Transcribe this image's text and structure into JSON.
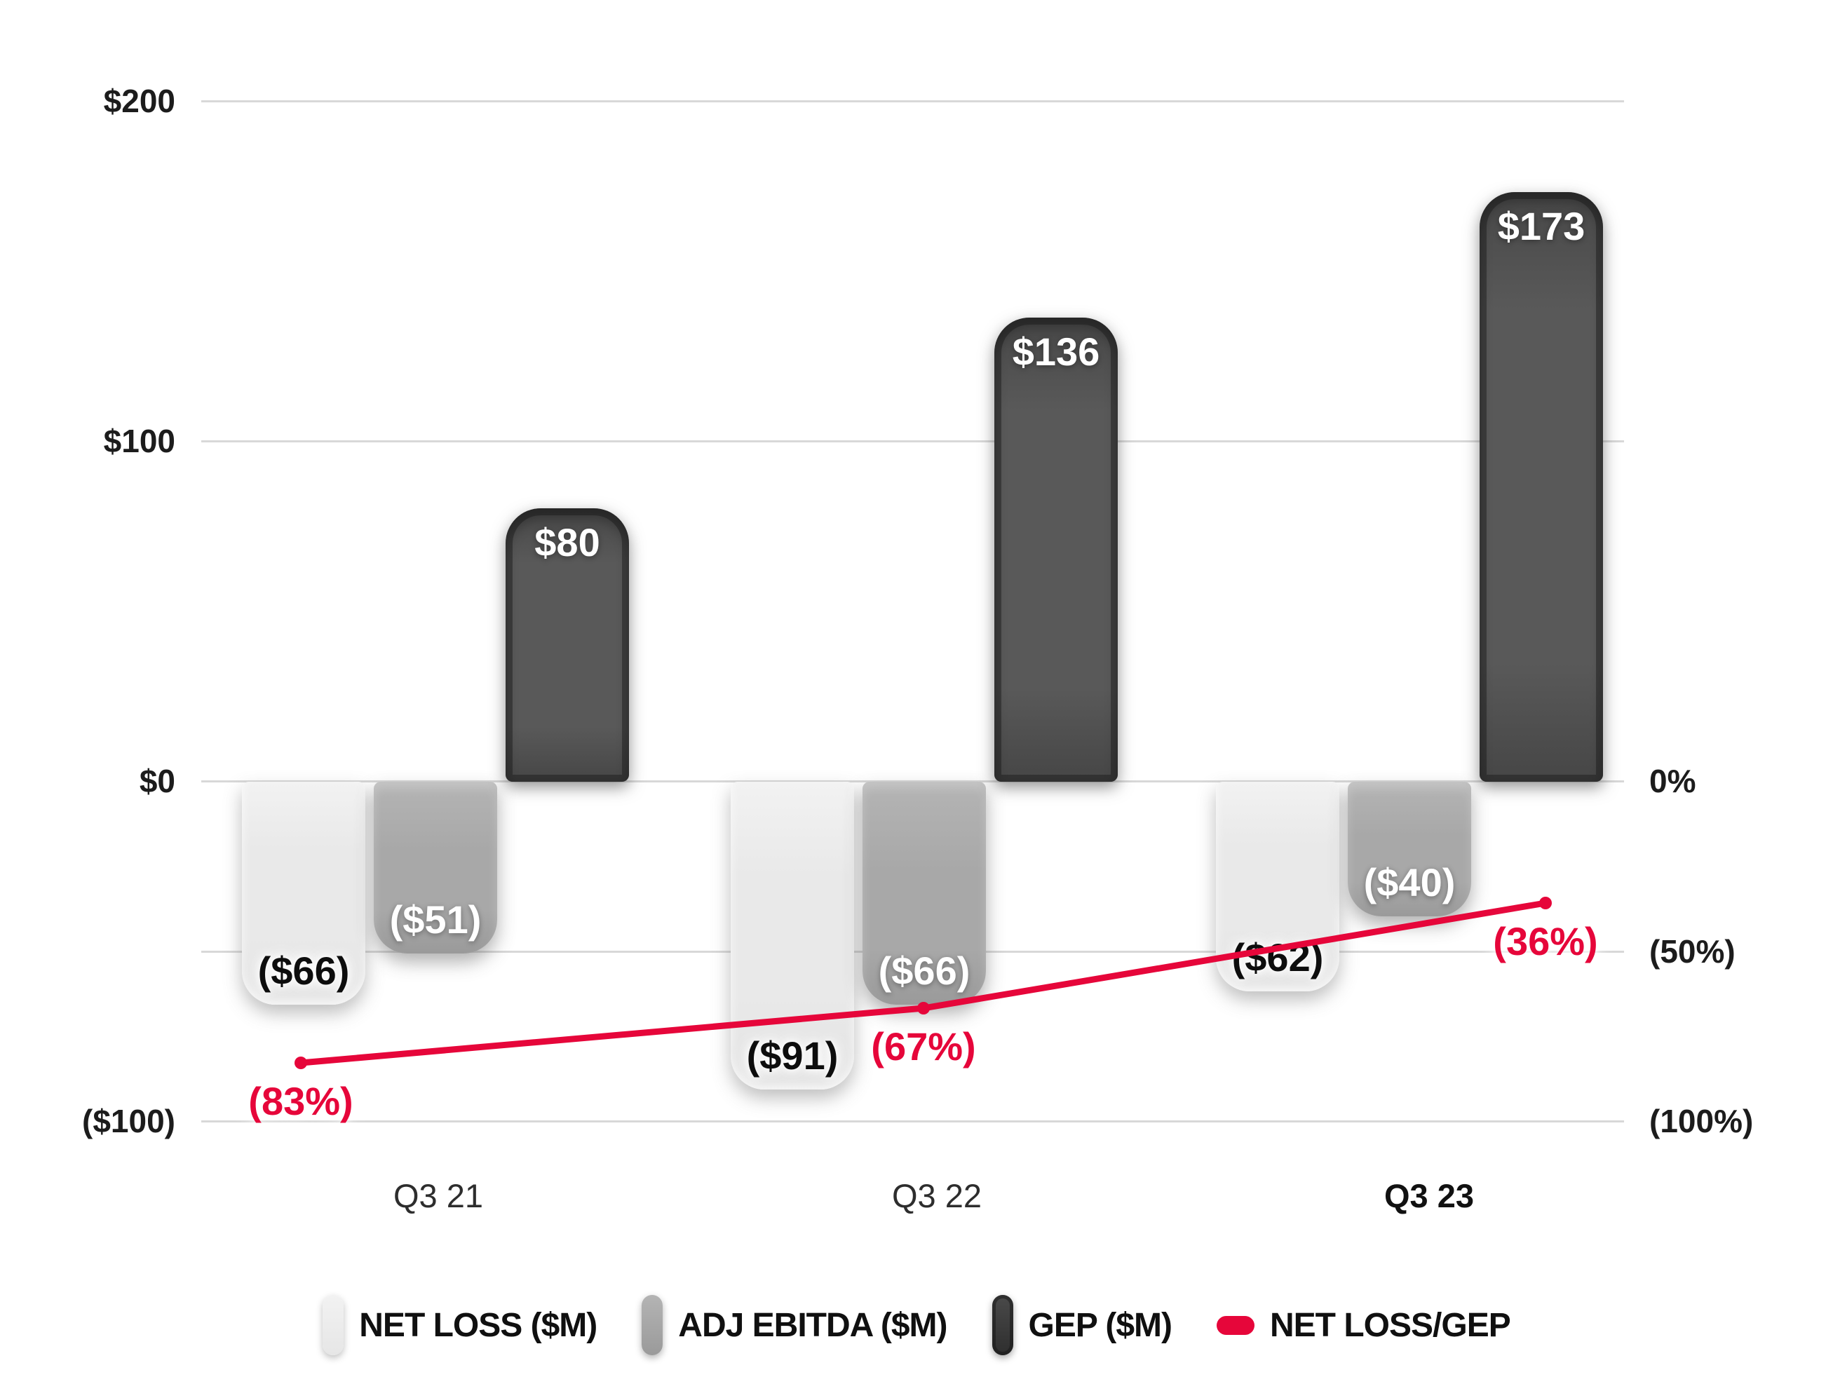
{
  "chart_data": {
    "type": "combo-bar-line",
    "title": "",
    "background": "#ffffff",
    "grid": true,
    "legend_position": "bottom",
    "categories": [
      {
        "label": "Q3 21",
        "bold": false
      },
      {
        "label": "Q3 22",
        "bold": false
      },
      {
        "label": "Q3 23",
        "bold": true
      }
    ],
    "series": [
      {
        "name": "NET LOSS ($M)",
        "kind": "bar",
        "axis": "left",
        "values": [
          -66,
          -91,
          -62
        ],
        "data_labels": [
          "($66)",
          "($91)",
          "($62)"
        ],
        "color": "#e9e9e9"
      },
      {
        "name": "ADJ EBITDA ($M)",
        "kind": "bar",
        "axis": "left",
        "values": [
          -51,
          -66,
          -40
        ],
        "data_labels": [
          "($51)",
          "($66)",
          "($40)"
        ],
        "color": "#a8a8a8"
      },
      {
        "name": "GEP ($M)",
        "kind": "bar",
        "axis": "left",
        "values": [
          80,
          136,
          173
        ],
        "data_labels": [
          "$80",
          "$136",
          "$173"
        ],
        "color": "#595959"
      },
      {
        "name": "NET LOSS/GEP",
        "kind": "line",
        "axis": "right",
        "values": [
          -83,
          -67,
          -36
        ],
        "data_labels": [
          "(83%)",
          "(67%)",
          "(36%)"
        ],
        "color": "#e6063a"
      }
    ],
    "left_axis": {
      "range": [
        -100,
        200
      ],
      "ticks": [
        {
          "value": 200,
          "label": "$200"
        },
        {
          "value": 100,
          "label": "$100"
        },
        {
          "value": 0,
          "label": "$0"
        },
        {
          "value": -100,
          "label": "($100)"
        }
      ]
    },
    "right_axis": {
      "range": [
        -100,
        0
      ],
      "unit": "%",
      "ticks": [
        {
          "value": 0,
          "label": "0%"
        },
        {
          "value": -50,
          "label": "(50%)"
        },
        {
          "value": -100,
          "label": "(100%)"
        }
      ]
    },
    "gridline_values": [
      200,
      100,
      0,
      -50,
      -100
    ]
  }
}
